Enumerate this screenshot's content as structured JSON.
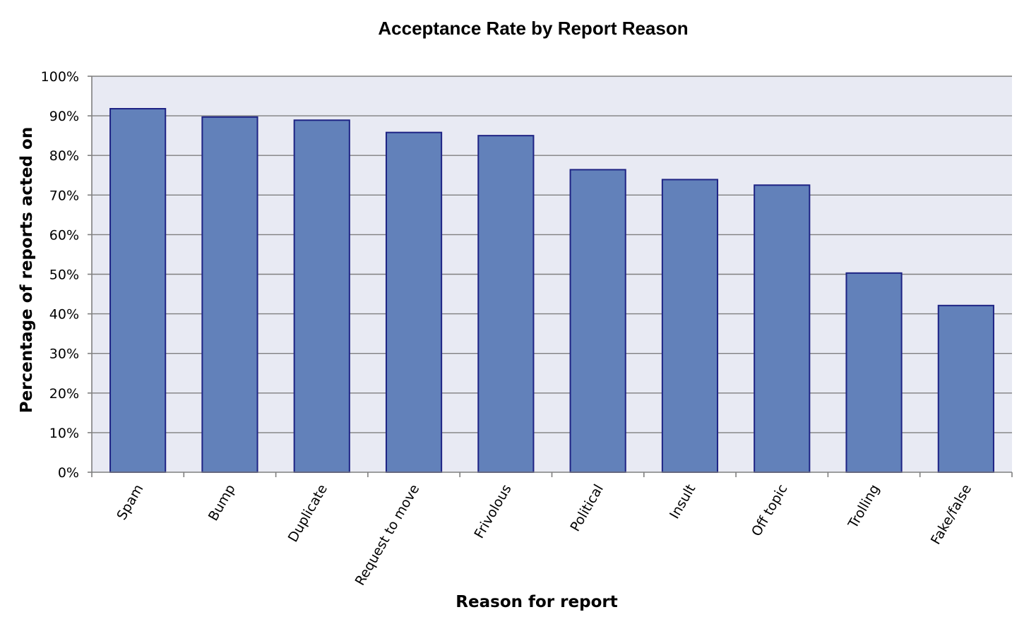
{
  "chart_data": {
    "type": "bar",
    "title": "Acceptance Rate by Report Reason",
    "xlabel": "Reason for report",
    "ylabel": "Percentage of reports acted on",
    "categories": [
      "Spam",
      "Bump",
      "Duplicate",
      "Request to move",
      "Frivolous",
      "Political",
      "Insult",
      "Off topic",
      "Trolling",
      "Fake/false"
    ],
    "values": [
      91.8,
      89.7,
      88.9,
      85.8,
      85.0,
      76.4,
      73.9,
      72.5,
      50.3,
      42.1
    ],
    "ylim": [
      0,
      100
    ],
    "yticks": [
      "0%",
      "10%",
      "20%",
      "30%",
      "40%",
      "50%",
      "60%",
      "70%",
      "80%",
      "90%",
      "100%"
    ],
    "grid": true,
    "legend": "none",
    "colors": {
      "bar_fill": "#6281ba",
      "bar_stroke": "#1e2384",
      "plot_background": "#e8eaf3"
    }
  }
}
